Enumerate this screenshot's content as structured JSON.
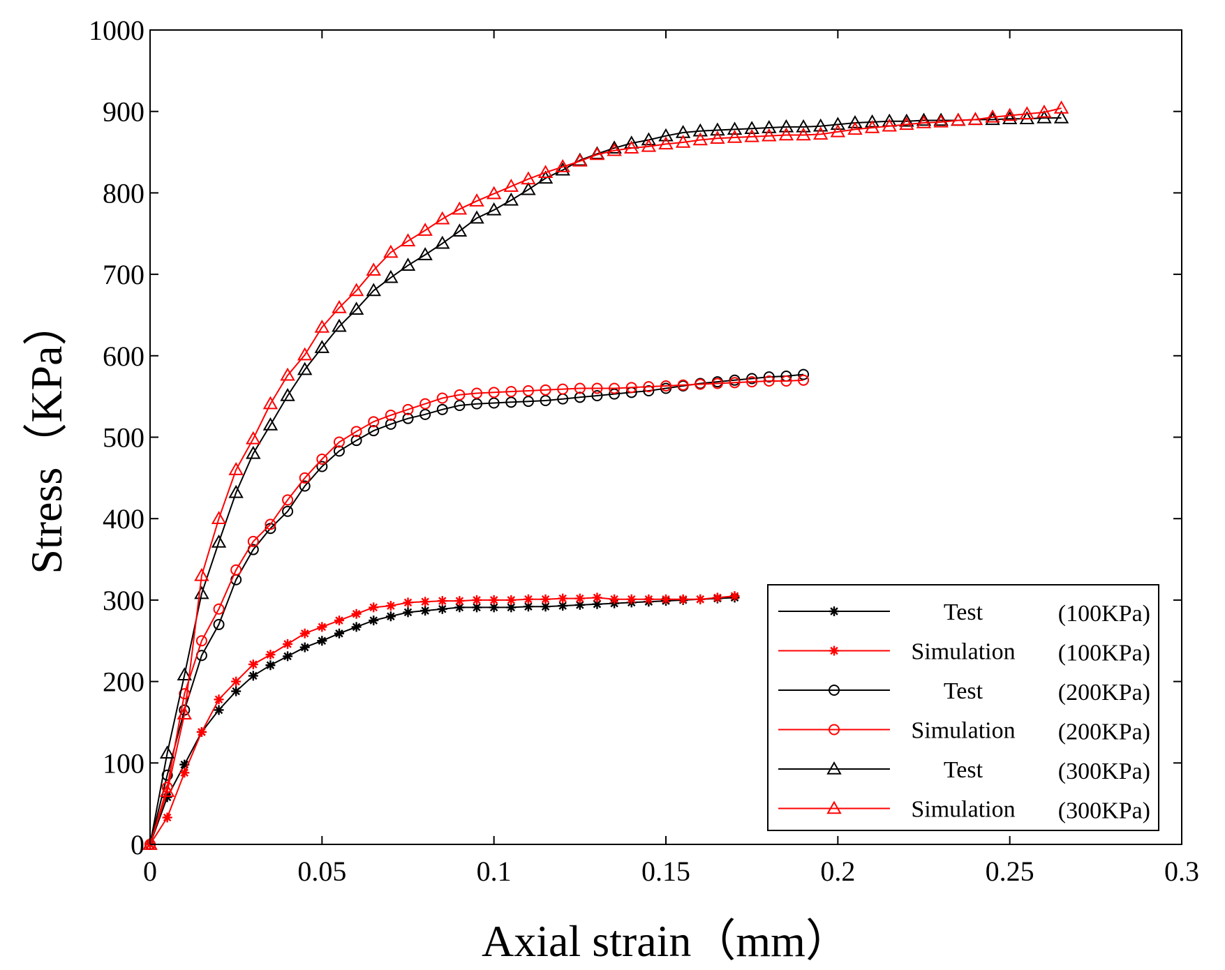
{
  "chart_data": {
    "type": "line",
    "title": "",
    "xlabel": "Axial strain（mm）",
    "ylabel": "Stress（KPa）",
    "xlim": [
      0,
      0.3
    ],
    "ylim": [
      0,
      1000
    ],
    "xticks": [
      0,
      0.05,
      0.1,
      0.15,
      0.2,
      0.25,
      0.3
    ],
    "xtick_labels": [
      "0",
      "0.05",
      "0.1",
      "0.15",
      "0.2",
      "0.25",
      "0.3"
    ],
    "yticks": [
      0,
      100,
      200,
      300,
      400,
      500,
      600,
      700,
      800,
      900,
      1000
    ],
    "ytick_labels": [
      "0",
      "100",
      "200",
      "300",
      "400",
      "500",
      "600",
      "700",
      "800",
      "900",
      "1000"
    ],
    "grid": false,
    "legend_position": "bottom-right",
    "series": [
      {
        "name": "Test",
        "condition": "(100KPa)",
        "color": "#000000",
        "marker": "star",
        "x": [
          0,
          0.005,
          0.01,
          0.015,
          0.02,
          0.025,
          0.03,
          0.035,
          0.04,
          0.045,
          0.05,
          0.055,
          0.06,
          0.065,
          0.07,
          0.075,
          0.08,
          0.085,
          0.09,
          0.095,
          0.1,
          0.105,
          0.11,
          0.115,
          0.12,
          0.125,
          0.13,
          0.135,
          0.14,
          0.145,
          0.15,
          0.155,
          0.16,
          0.165,
          0.17
        ],
        "y": [
          0,
          58,
          98,
          138,
          165,
          188,
          207,
          220,
          231,
          242,
          250,
          259,
          267,
          275,
          280,
          285,
          287,
          289,
          291,
          291,
          291,
          291,
          292,
          292,
          293,
          294,
          295,
          296,
          297,
          298,
          299,
          300,
          301,
          302,
          303
        ]
      },
      {
        "name": "Simulation",
        "condition": "(100KPa)",
        "color": "#ff0000",
        "marker": "star",
        "x": [
          0,
          0.005,
          0.01,
          0.015,
          0.02,
          0.025,
          0.03,
          0.035,
          0.04,
          0.045,
          0.05,
          0.055,
          0.06,
          0.065,
          0.07,
          0.075,
          0.08,
          0.085,
          0.09,
          0.095,
          0.1,
          0.105,
          0.11,
          0.115,
          0.12,
          0.125,
          0.13,
          0.135,
          0.14,
          0.145,
          0.15,
          0.155,
          0.16,
          0.165,
          0.17
        ],
        "y": [
          0,
          33,
          88,
          138,
          178,
          200,
          221,
          233,
          246,
          259,
          267,
          275,
          283,
          291,
          293,
          297,
          298,
          299,
          299,
          300,
          300,
          300,
          301,
          301,
          302,
          302,
          303,
          301,
          301,
          301,
          301,
          301,
          301,
          303,
          305
        ]
      },
      {
        "name": "Test",
        "condition": "(200KPa)",
        "color": "#000000",
        "marker": "circle",
        "x": [
          0,
          0.005,
          0.01,
          0.015,
          0.02,
          0.025,
          0.03,
          0.035,
          0.04,
          0.045,
          0.05,
          0.055,
          0.06,
          0.065,
          0.07,
          0.075,
          0.08,
          0.085,
          0.09,
          0.095,
          0.1,
          0.105,
          0.11,
          0.115,
          0.12,
          0.125,
          0.13,
          0.135,
          0.14,
          0.145,
          0.15,
          0.155,
          0.16,
          0.165,
          0.17,
          0.175,
          0.18,
          0.185,
          0.19
        ],
        "y": [
          0,
          85,
          165,
          232,
          270,
          325,
          362,
          388,
          409,
          440,
          464,
          483,
          496,
          508,
          516,
          523,
          528,
          534,
          539,
          541,
          542,
          543,
          544,
          545,
          547,
          549,
          551,
          553,
          555,
          557,
          560,
          563,
          566,
          568,
          570,
          572,
          574,
          575,
          577
        ]
      },
      {
        "name": "Simulation",
        "condition": "(200KPa)",
        "color": "#ff0000",
        "marker": "circle",
        "x": [
          0,
          0.005,
          0.01,
          0.015,
          0.02,
          0.025,
          0.03,
          0.035,
          0.04,
          0.045,
          0.05,
          0.055,
          0.06,
          0.065,
          0.07,
          0.075,
          0.08,
          0.085,
          0.09,
          0.095,
          0.1,
          0.105,
          0.11,
          0.115,
          0.12,
          0.125,
          0.13,
          0.135,
          0.14,
          0.145,
          0.15,
          0.155,
          0.16,
          0.165,
          0.17,
          0.175,
          0.18,
          0.185,
          0.19
        ],
        "y": [
          0,
          70,
          185,
          250,
          289,
          337,
          372,
          393,
          423,
          450,
          473,
          494,
          507,
          519,
          527,
          534,
          541,
          548,
          552,
          554,
          555,
          556,
          557,
          558,
          559,
          560,
          560,
          560,
          561,
          562,
          563,
          564,
          565,
          566,
          567,
          568,
          569,
          569,
          570
        ]
      },
      {
        "name": "Test",
        "condition": "(300KPa)",
        "color": "#000000",
        "marker": "triangle",
        "x": [
          0,
          0.005,
          0.01,
          0.015,
          0.02,
          0.025,
          0.03,
          0.035,
          0.04,
          0.045,
          0.05,
          0.055,
          0.06,
          0.065,
          0.07,
          0.075,
          0.08,
          0.085,
          0.09,
          0.095,
          0.1,
          0.105,
          0.11,
          0.115,
          0.12,
          0.125,
          0.13,
          0.135,
          0.14,
          0.145,
          0.15,
          0.155,
          0.16,
          0.165,
          0.17,
          0.175,
          0.18,
          0.185,
          0.19,
          0.195,
          0.2,
          0.205,
          0.21,
          0.215,
          0.22,
          0.225,
          0.23,
          0.235,
          0.24,
          0.245,
          0.25,
          0.255,
          0.26,
          0.265
        ],
        "y": [
          0,
          112,
          208,
          308,
          371,
          432,
          480,
          515,
          551,
          583,
          610,
          636,
          657,
          680,
          696,
          711,
          724,
          738,
          753,
          769,
          779,
          791,
          804,
          818,
          828,
          840,
          848,
          855,
          861,
          865,
          870,
          874,
          876,
          877,
          878,
          879,
          880,
          881,
          881,
          882,
          884,
          886,
          887,
          888,
          888,
          889,
          889,
          889,
          890,
          890,
          891,
          891,
          892,
          892
        ]
      },
      {
        "name": "Simulation",
        "condition": "(300KPa)",
        "color": "#ff0000",
        "marker": "triangle",
        "x": [
          0,
          0.005,
          0.01,
          0.015,
          0.02,
          0.025,
          0.03,
          0.035,
          0.04,
          0.045,
          0.05,
          0.055,
          0.06,
          0.065,
          0.07,
          0.075,
          0.08,
          0.085,
          0.09,
          0.095,
          0.1,
          0.105,
          0.11,
          0.115,
          0.12,
          0.125,
          0.13,
          0.135,
          0.14,
          0.145,
          0.15,
          0.155,
          0.16,
          0.165,
          0.17,
          0.175,
          0.18,
          0.185,
          0.19,
          0.195,
          0.2,
          0.205,
          0.21,
          0.215,
          0.22,
          0.225,
          0.23,
          0.235,
          0.24,
          0.245,
          0.25,
          0.255,
          0.26,
          0.265
        ],
        "y": [
          0,
          65,
          160,
          330,
          400,
          460,
          498,
          541,
          576,
          601,
          635,
          659,
          680,
          705,
          727,
          741,
          754,
          768,
          780,
          790,
          799,
          808,
          817,
          825,
          832,
          839,
          847,
          852,
          855,
          857,
          860,
          862,
          865,
          867,
          868,
          869,
          870,
          871,
          871,
          872,
          875,
          878,
          880,
          882,
          884,
          886,
          887,
          889,
          890,
          893,
          895,
          897,
          899,
          904
        ]
      }
    ]
  }
}
